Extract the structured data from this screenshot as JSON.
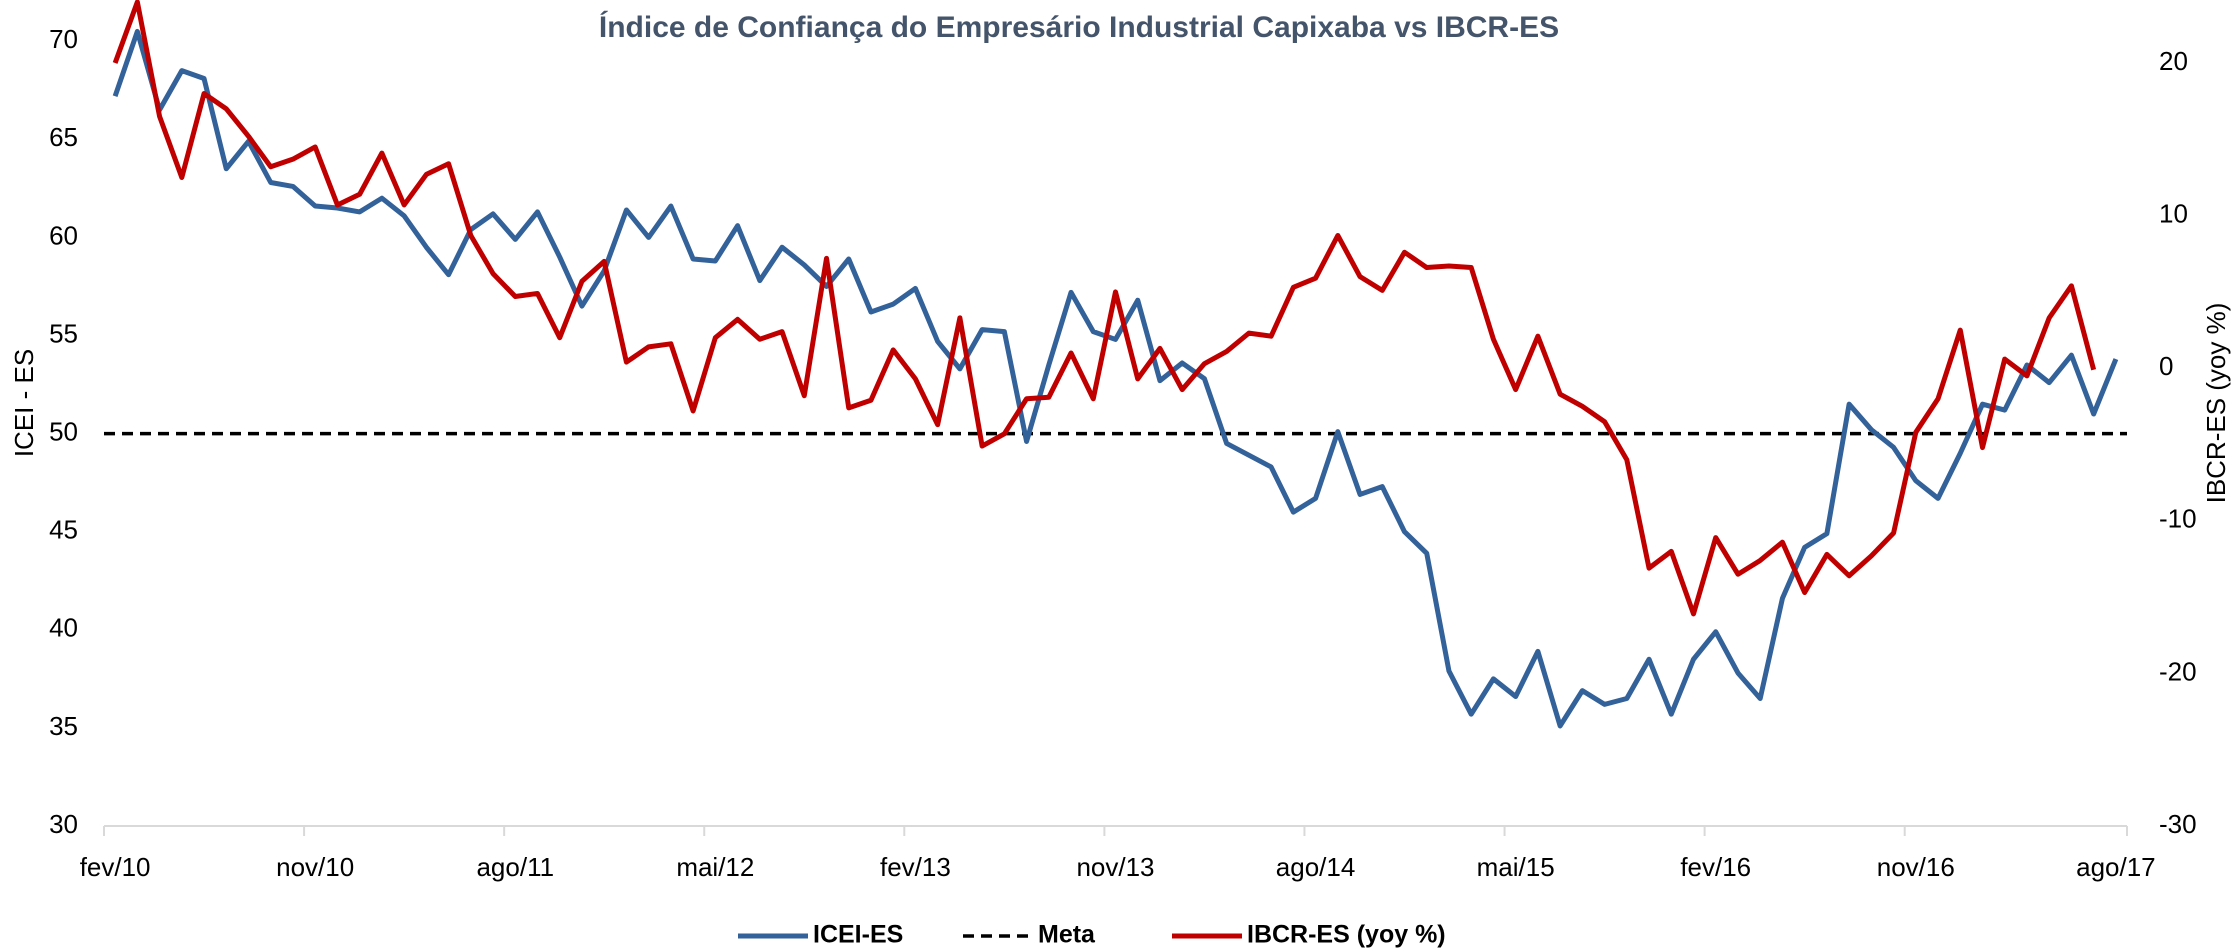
{
  "chart_data": {
    "type": "line",
    "title": "Índice de Confiança do Empresário Industrial Capixaba vs IBCR-ES",
    "y_label": "ICEI - ES",
    "y2_label": "IBCR-ES (yoy %)",
    "categories": [
      "fev/10",
      null,
      null,
      null,
      null,
      null,
      null,
      null,
      null,
      "nov/10",
      null,
      null,
      null,
      null,
      null,
      null,
      null,
      null,
      "ago/11",
      null,
      null,
      null,
      null,
      null,
      null,
      null,
      null,
      "mai/12",
      null,
      null,
      null,
      null,
      null,
      null,
      null,
      null,
      "fev/13",
      null,
      null,
      null,
      null,
      null,
      null,
      null,
      null,
      "nov/13",
      null,
      null,
      null,
      null,
      null,
      null,
      null,
      null,
      "ago/14",
      null,
      null,
      null,
      null,
      null,
      null,
      null,
      null,
      "mai/15",
      null,
      null,
      null,
      null,
      null,
      null,
      null,
      null,
      "fev/16",
      null,
      null,
      null,
      null,
      null,
      null,
      null,
      null,
      "nov/16",
      null,
      null,
      null,
      null,
      null,
      null,
      null,
      null,
      "ago/17"
    ],
    "series": [
      {
        "name": "ICEI-ES",
        "color": "#336199",
        "axis": "y",
        "values": [
          67.2,
          70.5,
          66.5,
          68.5,
          68.1,
          63.5,
          64.9,
          62.8,
          62.6,
          61.6,
          61.5,
          61.3,
          62.0,
          61.1,
          59.5,
          58.1,
          60.4,
          61.2,
          59.9,
          61.3,
          59.0,
          56.5,
          58.3,
          61.4,
          60.0,
          61.6,
          58.9,
          58.8,
          60.6,
          57.8,
          59.5,
          58.6,
          57.5,
          58.9,
          56.2,
          56.6,
          57.4,
          54.7,
          53.3,
          55.3,
          55.2,
          49.6,
          53.5,
          57.2,
          55.2,
          54.8,
          56.8,
          52.7,
          53.6,
          52.8,
          49.5,
          48.9,
          48.3,
          46.0,
          46.7,
          50.1,
          46.9,
          47.3,
          45.0,
          43.9,
          37.9,
          35.7,
          37.5,
          36.6,
          38.9,
          35.1,
          36.9,
          36.2,
          36.5,
          38.5,
          35.7,
          38.5,
          39.9,
          37.8,
          36.5,
          41.6,
          44.2,
          44.9,
          51.5,
          50.2,
          49.3,
          47.6,
          46.7,
          49.0,
          51.5,
          51.2,
          53.5,
          52.6,
          54.0,
          51.0,
          53.8
        ]
      },
      {
        "name": "IBCR-ES (yoy %)",
        "color": "#c00000",
        "axis": "y2",
        "values": [
          20,
          24,
          16.5,
          12.5,
          18,
          17,
          15.2,
          13.2,
          13.7,
          14.5,
          10.7,
          11.4,
          14.1,
          10.7,
          12.7,
          13.4,
          8.7,
          6.2,
          4.7,
          4.9,
          2.0,
          5.7,
          7.0,
          0.4,
          1.4,
          1.6,
          -2.8,
          2.0,
          3.2,
          1.9,
          2.4,
          -1.8,
          7.2,
          -2.6,
          -2.1,
          1.2,
          -0.7,
          -3.7,
          3.3,
          -5.1,
          -4.3,
          -2.0,
          -1.9,
          1.0,
          -2.0,
          5.0,
          -0.7,
          1.3,
          -1.4,
          0.3,
          1.1,
          2.3,
          2.1,
          5.3,
          5.9,
          8.7,
          6.0,
          5.1,
          7.6,
          6.6,
          6.7,
          6.6,
          1.9,
          -1.4,
          2.1,
          -1.7,
          -2.5,
          -3.5,
          -6.0,
          -13.1,
          -12.0,
          -16.1,
          -11.1,
          -13.5,
          -12.6,
          -11.4,
          -14.7,
          -12.2,
          -13.6,
          -12.3,
          -10.8,
          -4.2,
          -2.0,
          2.5,
          -5.2,
          0.6,
          -0.5,
          3.3,
          5.4,
          -0.1,
          null
        ]
      }
    ],
    "reference_line": {
      "name": "Meta",
      "value": 50,
      "color": "#000000",
      "dashed": true
    },
    "ylim": [
      30,
      72
    ],
    "yticks": [
      30,
      35,
      40,
      45,
      50,
      55,
      60,
      65,
      70
    ],
    "y2lim": [
      -30,
      24
    ],
    "y2ticks": [
      -30,
      -20,
      -10,
      0,
      10,
      20
    ],
    "legend": "bottom"
  }
}
